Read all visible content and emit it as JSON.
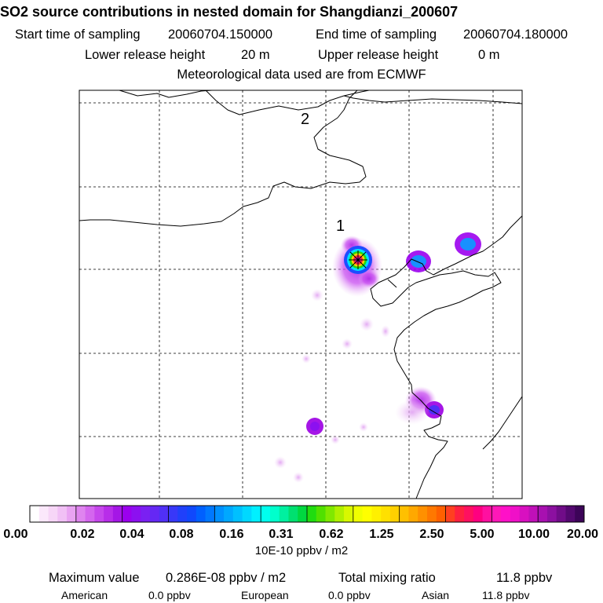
{
  "title": "SO2 source contributions in nested domain for Shangdianzi_200607",
  "sampling": {
    "start_label": "Start time of sampling",
    "start_value": "20060704.150000",
    "end_label": "End time of sampling",
    "end_value": "20060704.180000"
  },
  "release": {
    "lower_label": "Lower release height",
    "lower_value": "20 m",
    "upper_label": "Upper release height",
    "upper_value": "0 m"
  },
  "met_data": "Meteorological data used are from ECMWF",
  "map": {
    "labels": [
      {
        "id": "site-2",
        "text": "2"
      },
      {
        "id": "site-1",
        "text": "1"
      }
    ]
  },
  "colorbar": {
    "tick_labels": [
      "0.00",
      "0.02",
      "0.04",
      "0.08",
      "0.16",
      "0.31",
      "0.62",
      "1.25",
      "2.50",
      "5.00",
      "10.00",
      "20.00"
    ],
    "unit": "10E-10 ppbv / m2",
    "colors": [
      "#ffffff",
      "#fbe8fb",
      "#f7d6f7",
      "#f1c0f5",
      "#e9a3f2",
      "#df84ef",
      "#d466ee",
      "#c647ec",
      "#b82de9",
      "#a516e6",
      "#9b00ee",
      "#8c10f0",
      "#7a20f2",
      "#6528f4",
      "#5030f6",
      "#3838f8",
      "#2040fa",
      "#1048fc",
      "#0060ff",
      "#0078ff",
      "#0090ff",
      "#00a8ff",
      "#00c0ff",
      "#00d8ff",
      "#00f0ff",
      "#00ffee",
      "#00ffcc",
      "#00f0a0",
      "#00e070",
      "#00d840",
      "#20dc10",
      "#50e000",
      "#80e800",
      "#b0f000",
      "#d8f800",
      "#f0ff00",
      "#ffff00",
      "#fff000",
      "#ffe000",
      "#ffd000",
      "#ffc000",
      "#ffa800",
      "#ff9000",
      "#ff7800",
      "#ff6000",
      "#ff4020",
      "#ff2040",
      "#ff1060",
      "#ff0080",
      "#ff10a0",
      "#ff18b8",
      "#ff10c8",
      "#f010c8",
      "#d810c0",
      "#c010b8",
      "#a810b0",
      "#8c10a0",
      "#700c88",
      "#540870",
      "#3c0458"
    ]
  },
  "summary": {
    "max_label": "Maximum value",
    "max_value": "0.286E-08 ppbv / m2",
    "total_label": "Total mixing ratio",
    "total_value": "11.8 ppbv",
    "american_label": "American",
    "american_value": "0.0 ppbv",
    "european_label": "European",
    "european_value": "0.0 ppbv",
    "asian_label": "Asian",
    "asian_value": "11.8 ppbv"
  }
}
